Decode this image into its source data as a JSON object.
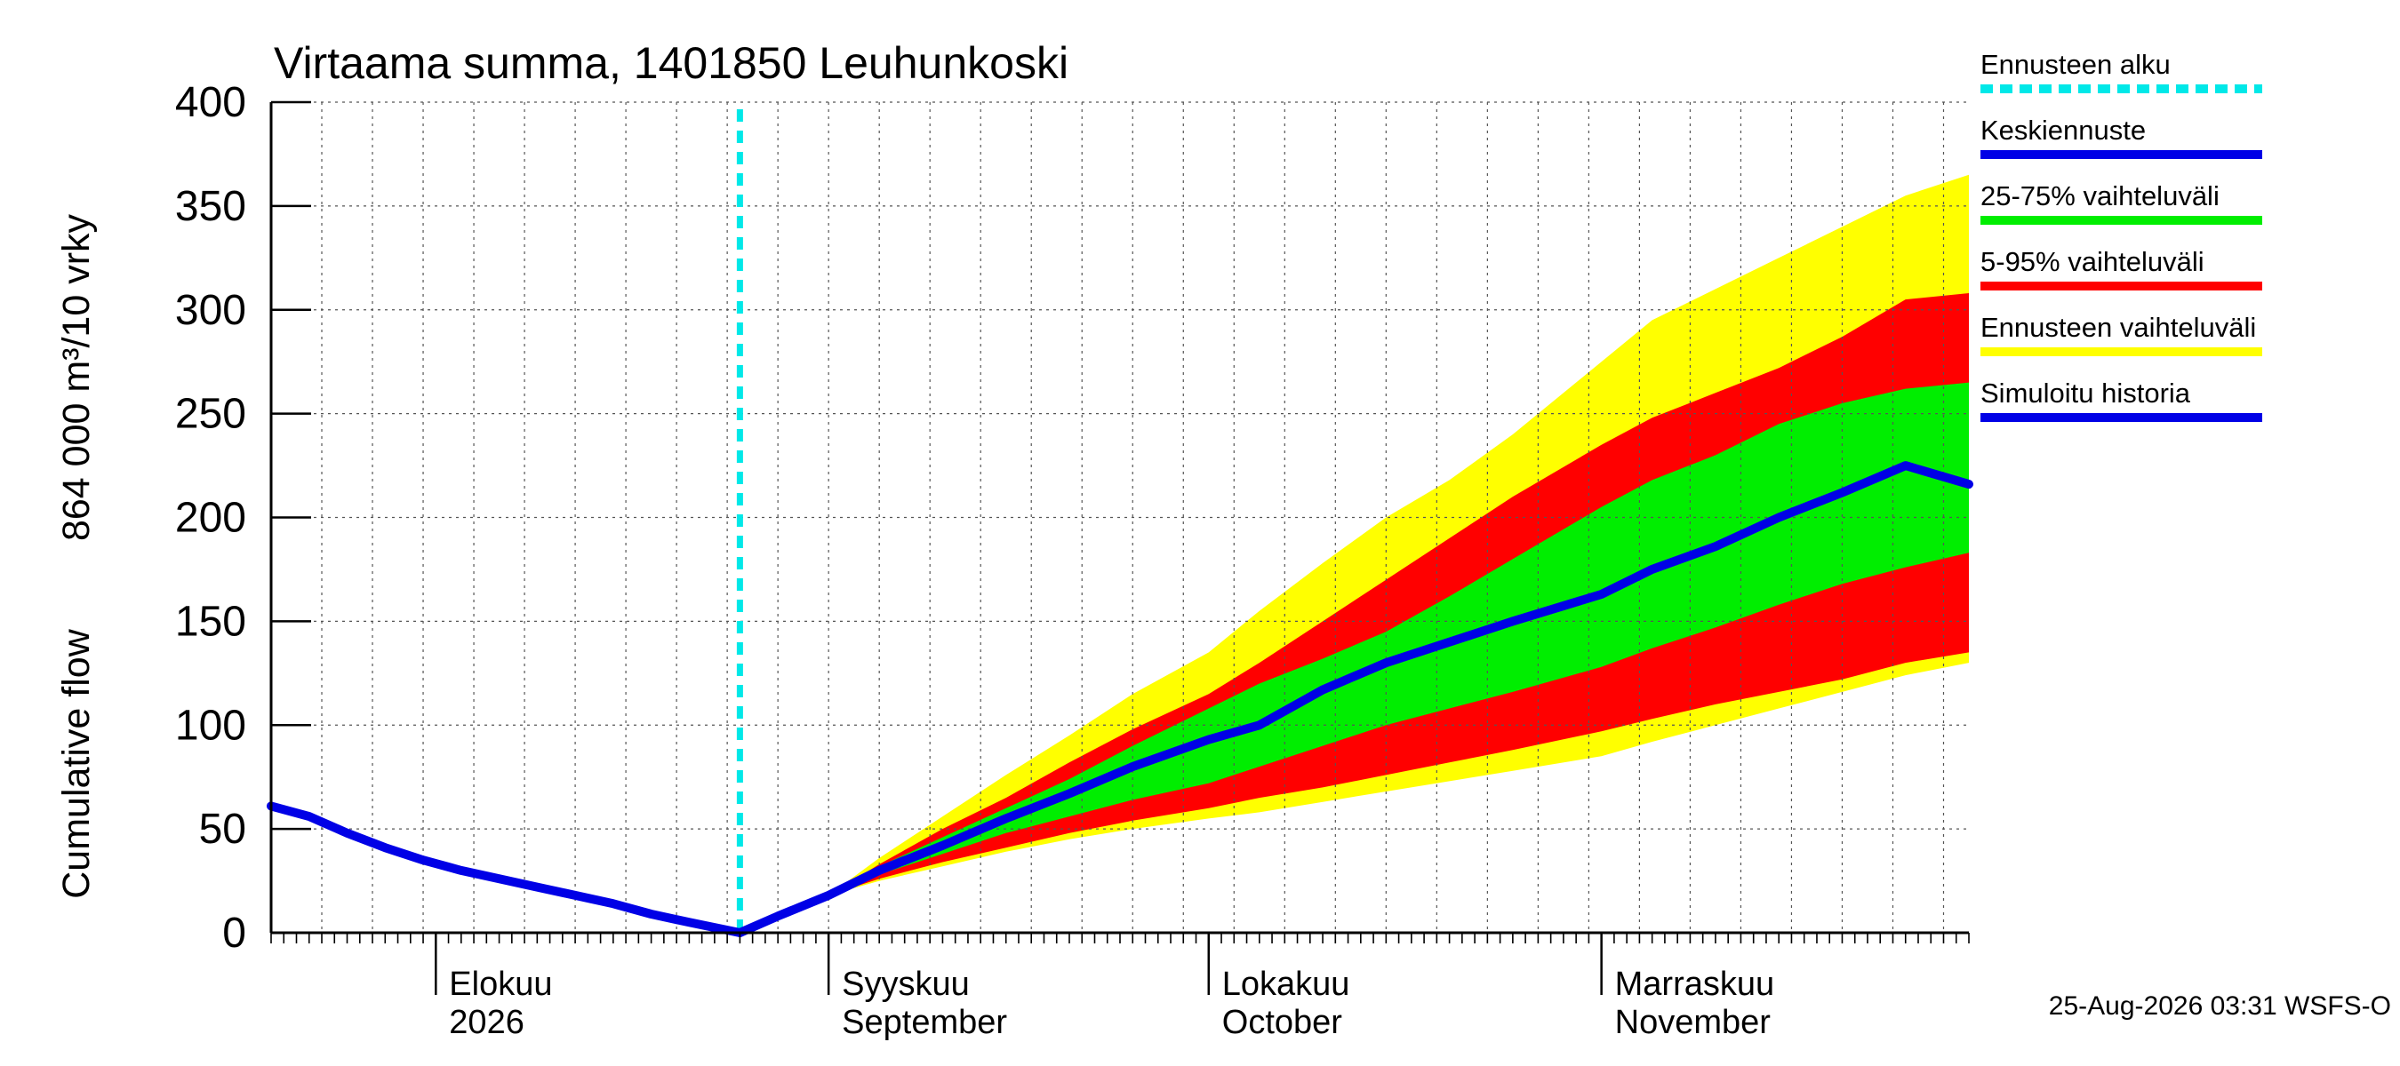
{
  "chart_data": {
    "type": "area",
    "title": "Virtaama summa, 1401850 Leuhunkoski",
    "ylabel_lines": [
      "Cumulative flow",
      "864 000 m³/10 vrky"
    ],
    "ylim": [
      0,
      400
    ],
    "yticks": [
      0,
      50,
      100,
      150,
      200,
      250,
      300,
      350,
      400
    ],
    "xlim": [
      "2026-07-19",
      "2026-11-30"
    ],
    "month_labels": [
      {
        "date": "2026-08-01",
        "line1": "Elokuu",
        "line2": "2026"
      },
      {
        "date": "2026-09-01",
        "line1": "Syyskuu",
        "line2": "September"
      },
      {
        "date": "2026-10-01",
        "line1": "Lokakuu",
        "line2": "October"
      },
      {
        "date": "2026-11-01",
        "line1": "Marraskuu",
        "line2": "November"
      }
    ],
    "forecast_start": "2026-08-25",
    "colors": {
      "forecast_start": "#00e8e8",
      "median": "#0000e6",
      "p25_75": "#00ee00",
      "p5_95": "#ff0000",
      "range": "#ffff00",
      "history": "#0000e6"
    },
    "legend": [
      {
        "label": "Ennusteen alku",
        "key": "forecast_start",
        "style": "dashed"
      },
      {
        "label": "Keskiennuste",
        "key": "median",
        "style": "solid"
      },
      {
        "label": "25-75% vaihteluväli",
        "key": "p25_75",
        "style": "solid"
      },
      {
        "label": "5-95% vaihteluväli",
        "key": "p5_95",
        "style": "solid"
      },
      {
        "label": "Ennusteen vaihteluväli",
        "key": "range",
        "style": "solid"
      },
      {
        "label": "Simuloitu historia",
        "key": "history",
        "style": "solid"
      }
    ],
    "series": {
      "history": [
        [
          "2026-07-19",
          61
        ],
        [
          "2026-07-22",
          56
        ],
        [
          "2026-07-25",
          48
        ],
        [
          "2026-07-28",
          41
        ],
        [
          "2026-07-31",
          35
        ],
        [
          "2026-08-03",
          30
        ],
        [
          "2026-08-06",
          26
        ],
        [
          "2026-08-09",
          22
        ],
        [
          "2026-08-12",
          18
        ],
        [
          "2026-08-15",
          14
        ],
        [
          "2026-08-18",
          9
        ],
        [
          "2026-08-21",
          5
        ],
        [
          "2026-08-25",
          0
        ]
      ],
      "median": [
        [
          "2026-08-25",
          0
        ],
        [
          "2026-08-28",
          8
        ],
        [
          "2026-09-01",
          18
        ],
        [
          "2026-09-05",
          30
        ],
        [
          "2026-09-10",
          42
        ],
        [
          "2026-09-15",
          55
        ],
        [
          "2026-09-20",
          67
        ],
        [
          "2026-09-25",
          80
        ],
        [
          "2026-10-01",
          93
        ],
        [
          "2026-10-05",
          100
        ],
        [
          "2026-10-10",
          117
        ],
        [
          "2026-10-15",
          130
        ],
        [
          "2026-10-20",
          140
        ],
        [
          "2026-10-25",
          150
        ],
        [
          "2026-11-01",
          163
        ],
        [
          "2026-11-05",
          175
        ],
        [
          "2026-11-10",
          186
        ],
        [
          "2026-11-15",
          200
        ],
        [
          "2026-11-20",
          212
        ],
        [
          "2026-11-25",
          225
        ],
        [
          "2026-11-30",
          216
        ]
      ],
      "p25_75_upper": [
        [
          "2026-08-25",
          0
        ],
        [
          "2026-08-28",
          8
        ],
        [
          "2026-09-01",
          18
        ],
        [
          "2026-09-05",
          32
        ],
        [
          "2026-09-10",
          46
        ],
        [
          "2026-09-15",
          60
        ],
        [
          "2026-09-20",
          74
        ],
        [
          "2026-09-25",
          90
        ],
        [
          "2026-10-01",
          108
        ],
        [
          "2026-10-05",
          120
        ],
        [
          "2026-10-10",
          132
        ],
        [
          "2026-10-15",
          145
        ],
        [
          "2026-10-20",
          162
        ],
        [
          "2026-10-25",
          180
        ],
        [
          "2026-11-01",
          205
        ],
        [
          "2026-11-05",
          218
        ],
        [
          "2026-11-10",
          230
        ],
        [
          "2026-11-15",
          245
        ],
        [
          "2026-11-20",
          255
        ],
        [
          "2026-11-25",
          262
        ],
        [
          "2026-11-30",
          265
        ]
      ],
      "p25_75_lower": [
        [
          "2026-08-25",
          0
        ],
        [
          "2026-08-28",
          8
        ],
        [
          "2026-09-01",
          18
        ],
        [
          "2026-09-05",
          28
        ],
        [
          "2026-09-10",
          38
        ],
        [
          "2026-09-15",
          48
        ],
        [
          "2026-09-20",
          56
        ],
        [
          "2026-09-25",
          64
        ],
        [
          "2026-10-01",
          72
        ],
        [
          "2026-10-05",
          80
        ],
        [
          "2026-10-10",
          90
        ],
        [
          "2026-10-15",
          100
        ],
        [
          "2026-10-20",
          108
        ],
        [
          "2026-10-25",
          116
        ],
        [
          "2026-11-01",
          128
        ],
        [
          "2026-11-05",
          137
        ],
        [
          "2026-11-10",
          147
        ],
        [
          "2026-11-15",
          158
        ],
        [
          "2026-11-20",
          168
        ],
        [
          "2026-11-25",
          176
        ],
        [
          "2026-11-30",
          183
        ]
      ],
      "p5_95_upper": [
        [
          "2026-08-25",
          0
        ],
        [
          "2026-08-28",
          8
        ],
        [
          "2026-09-01",
          18
        ],
        [
          "2026-09-05",
          33
        ],
        [
          "2026-09-10",
          50
        ],
        [
          "2026-09-15",
          65
        ],
        [
          "2026-09-20",
          82
        ],
        [
          "2026-09-25",
          98
        ],
        [
          "2026-10-01",
          115
        ],
        [
          "2026-10-05",
          130
        ],
        [
          "2026-10-10",
          150
        ],
        [
          "2026-10-15",
          170
        ],
        [
          "2026-10-20",
          190
        ],
        [
          "2026-10-25",
          210
        ],
        [
          "2026-11-01",
          235
        ],
        [
          "2026-11-05",
          248
        ],
        [
          "2026-11-10",
          260
        ],
        [
          "2026-11-15",
          272
        ],
        [
          "2026-11-20",
          287
        ],
        [
          "2026-11-25",
          305
        ],
        [
          "2026-11-30",
          308
        ]
      ],
      "p5_95_lower": [
        [
          "2026-08-25",
          0
        ],
        [
          "2026-08-28",
          8
        ],
        [
          "2026-09-01",
          18
        ],
        [
          "2026-09-05",
          26
        ],
        [
          "2026-09-10",
          34
        ],
        [
          "2026-09-15",
          41
        ],
        [
          "2026-09-20",
          48
        ],
        [
          "2026-09-25",
          54
        ],
        [
          "2026-10-01",
          60
        ],
        [
          "2026-10-05",
          65
        ],
        [
          "2026-10-10",
          70
        ],
        [
          "2026-10-15",
          76
        ],
        [
          "2026-10-20",
          82
        ],
        [
          "2026-10-25",
          88
        ],
        [
          "2026-11-01",
          97
        ],
        [
          "2026-11-05",
          103
        ],
        [
          "2026-11-10",
          110
        ],
        [
          "2026-11-15",
          116
        ],
        [
          "2026-11-20",
          122
        ],
        [
          "2026-11-25",
          130
        ],
        [
          "2026-11-30",
          135
        ]
      ],
      "range_upper": [
        [
          "2026-08-25",
          0
        ],
        [
          "2026-08-28",
          8
        ],
        [
          "2026-09-01",
          18
        ],
        [
          "2026-09-05",
          36
        ],
        [
          "2026-09-10",
          56
        ],
        [
          "2026-09-15",
          76
        ],
        [
          "2026-09-20",
          95
        ],
        [
          "2026-09-25",
          115
        ],
        [
          "2026-10-01",
          135
        ],
        [
          "2026-10-05",
          155
        ],
        [
          "2026-10-10",
          178
        ],
        [
          "2026-10-15",
          200
        ],
        [
          "2026-10-20",
          218
        ],
        [
          "2026-10-25",
          240
        ],
        [
          "2026-11-01",
          275
        ],
        [
          "2026-11-05",
          295
        ],
        [
          "2026-11-10",
          310
        ],
        [
          "2026-11-15",
          325
        ],
        [
          "2026-11-20",
          340
        ],
        [
          "2026-11-25",
          355
        ],
        [
          "2026-11-30",
          365
        ]
      ],
      "range_lower": [
        [
          "2026-08-25",
          0
        ],
        [
          "2026-08-28",
          8
        ],
        [
          "2026-09-01",
          18
        ],
        [
          "2026-09-05",
          25
        ],
        [
          "2026-09-10",
          32
        ],
        [
          "2026-09-15",
          39
        ],
        [
          "2026-09-20",
          45
        ],
        [
          "2026-09-25",
          50
        ],
        [
          "2026-10-01",
          55
        ],
        [
          "2026-10-05",
          58
        ],
        [
          "2026-10-10",
          63
        ],
        [
          "2026-10-15",
          68
        ],
        [
          "2026-10-20",
          73
        ],
        [
          "2026-10-25",
          78
        ],
        [
          "2026-11-01",
          85
        ],
        [
          "2026-11-05",
          92
        ],
        [
          "2026-11-10",
          100
        ],
        [
          "2026-11-15",
          108
        ],
        [
          "2026-11-20",
          116
        ],
        [
          "2026-11-25",
          124
        ],
        [
          "2026-11-30",
          130
        ]
      ]
    }
  },
  "footer": "25-Aug-2026 03:31 WSFS-O"
}
